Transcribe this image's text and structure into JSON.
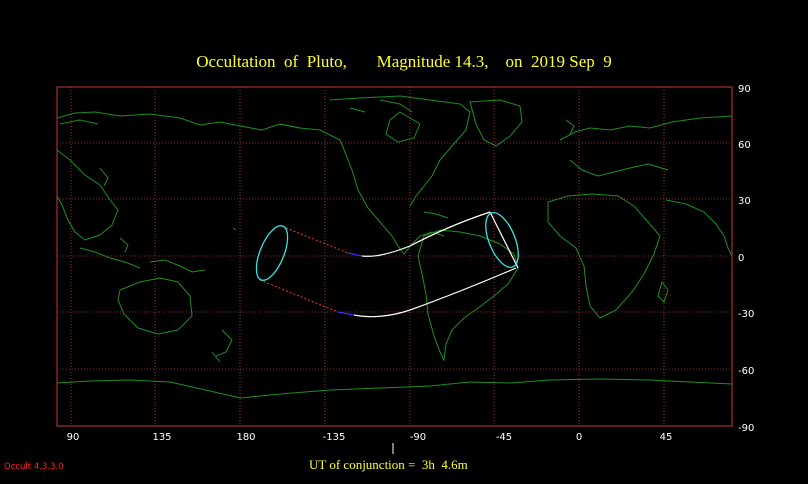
{
  "title": "Occultation  of  Pluto,       Magnitude 14.3,    on  2019 Sep  9",
  "lon_ticks": [
    "90",
    "135",
    "180",
    "-135",
    "-90",
    "-45",
    "0",
    "45"
  ],
  "lat_ticks": [
    "90",
    "60",
    "30",
    "0",
    "-30",
    "-60",
    "-90"
  ],
  "ut_conjunction": "UT of conjunction =  3h  4.6m",
  "version": "Occult 4.3.3.0",
  "colors": {
    "background": "#000000",
    "grid": "#cc3333",
    "coastline": "#1f8f1f",
    "title": "#ffff33",
    "path": "#ffffff",
    "path_dotted": "#ff3333",
    "path_night": "#3333ff",
    "ellipse": "#33e5e5",
    "tick_text": "#ffffff",
    "version_text": "#ff2222"
  }
}
